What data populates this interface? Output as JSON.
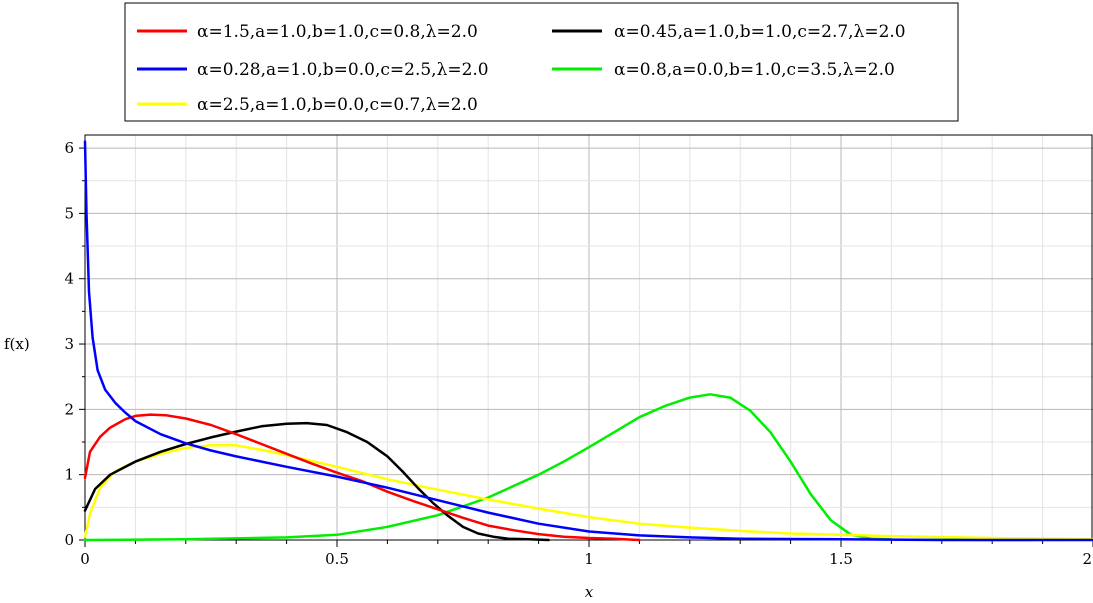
{
  "chart_data": {
    "type": "line",
    "xlabel": "x",
    "ylabel": "f(x)",
    "xlim": [
      0,
      2
    ],
    "ylim": [
      0,
      6.2
    ],
    "x_ticks": [
      0,
      0.5,
      1,
      1.5,
      2
    ],
    "x_tick_labels": [
      "0",
      "0.5",
      "1",
      "1.5",
      "2"
    ],
    "y_ticks": [
      0,
      1,
      2,
      3,
      4,
      5,
      6
    ],
    "y_tick_labels": [
      "0",
      "1",
      "2",
      "3",
      "4",
      "5",
      "6"
    ],
    "grid": true,
    "legend_position": "top",
    "series": [
      {
        "name": "α=1.5,a=1.0,b=1.0,c=0.8,λ=2.0",
        "color": "#ff0000",
        "x": [
          0,
          0.01,
          0.03,
          0.05,
          0.08,
          0.1,
          0.13,
          0.16,
          0.2,
          0.25,
          0.3,
          0.35,
          0.4,
          0.45,
          0.5,
          0.55,
          0.6,
          0.65,
          0.7,
          0.75,
          0.8,
          0.85,
          0.9,
          0.95,
          1.0,
          1.05,
          1.1
        ],
        "y": [
          0.95,
          1.35,
          1.58,
          1.72,
          1.85,
          1.9,
          1.92,
          1.91,
          1.86,
          1.76,
          1.62,
          1.47,
          1.32,
          1.17,
          1.03,
          0.9,
          0.74,
          0.6,
          0.47,
          0.34,
          0.22,
          0.15,
          0.09,
          0.05,
          0.03,
          0.02,
          0.0
        ]
      },
      {
        "name": "α=0.45,a=1.0,b=1.0,c=2.7,λ=2.0",
        "color": "#000000",
        "x": [
          0,
          0.02,
          0.05,
          0.1,
          0.15,
          0.2,
          0.25,
          0.3,
          0.35,
          0.4,
          0.44,
          0.48,
          0.52,
          0.56,
          0.6,
          0.63,
          0.66,
          0.69,
          0.72,
          0.75,
          0.78,
          0.81,
          0.84,
          0.88,
          0.92
        ],
        "y": [
          0.45,
          0.78,
          1.0,
          1.2,
          1.35,
          1.47,
          1.57,
          1.66,
          1.74,
          1.78,
          1.79,
          1.76,
          1.65,
          1.5,
          1.28,
          1.05,
          0.8,
          0.57,
          0.37,
          0.2,
          0.1,
          0.05,
          0.02,
          0.01,
          0.0
        ]
      },
      {
        "name": "α=0.28,a=1.0,b=0.0,c=2.5,λ=2.0",
        "color": "#0000ff",
        "x": [
          0,
          0.003,
          0.008,
          0.015,
          0.025,
          0.04,
          0.06,
          0.08,
          0.1,
          0.15,
          0.2,
          0.25,
          0.3,
          0.4,
          0.5,
          0.6,
          0.7,
          0.8,
          0.9,
          1.0,
          1.1,
          1.2,
          1.3,
          1.5,
          1.7,
          2.0
        ],
        "y": [
          6.1,
          5.0,
          3.8,
          3.1,
          2.6,
          2.3,
          2.1,
          1.95,
          1.82,
          1.62,
          1.48,
          1.37,
          1.28,
          1.12,
          0.97,
          0.8,
          0.61,
          0.42,
          0.25,
          0.13,
          0.07,
          0.04,
          0.02,
          0.01,
          0.0,
          0.0
        ]
      },
      {
        "name": "α=0.8,a=0.0,b=1.0,c=3.5,λ=2.0",
        "color": "#00ee00",
        "x": [
          0,
          0.2,
          0.4,
          0.5,
          0.6,
          0.7,
          0.8,
          0.9,
          0.95,
          1.0,
          1.05,
          1.1,
          1.15,
          1.2,
          1.24,
          1.28,
          1.32,
          1.36,
          1.4,
          1.44,
          1.48,
          1.52,
          1.56,
          1.6,
          1.8,
          1.88
        ],
        "y": [
          0.0,
          0.01,
          0.04,
          0.08,
          0.2,
          0.38,
          0.65,
          1.0,
          1.2,
          1.42,
          1.65,
          1.88,
          2.05,
          2.18,
          2.23,
          2.18,
          1.98,
          1.65,
          1.2,
          0.7,
          0.3,
          0.08,
          0.02,
          0.01,
          0.0,
          0.0
        ]
      },
      {
        "name": "α=2.5,a=1.0,b=0.0,c=0.7,λ=2.0",
        "color": "#ffff00",
        "x": [
          0,
          0.01,
          0.03,
          0.06,
          0.1,
          0.15,
          0.2,
          0.25,
          0.3,
          0.35,
          0.4,
          0.5,
          0.6,
          0.7,
          0.8,
          0.9,
          1.0,
          1.1,
          1.2,
          1.3,
          1.4,
          1.5,
          1.6,
          1.8,
          2.0
        ],
        "y": [
          0.05,
          0.4,
          0.8,
          1.05,
          1.2,
          1.32,
          1.41,
          1.45,
          1.45,
          1.38,
          1.3,
          1.12,
          0.93,
          0.77,
          0.62,
          0.48,
          0.35,
          0.25,
          0.19,
          0.14,
          0.1,
          0.08,
          0.06,
          0.03,
          0.01
        ]
      }
    ]
  }
}
